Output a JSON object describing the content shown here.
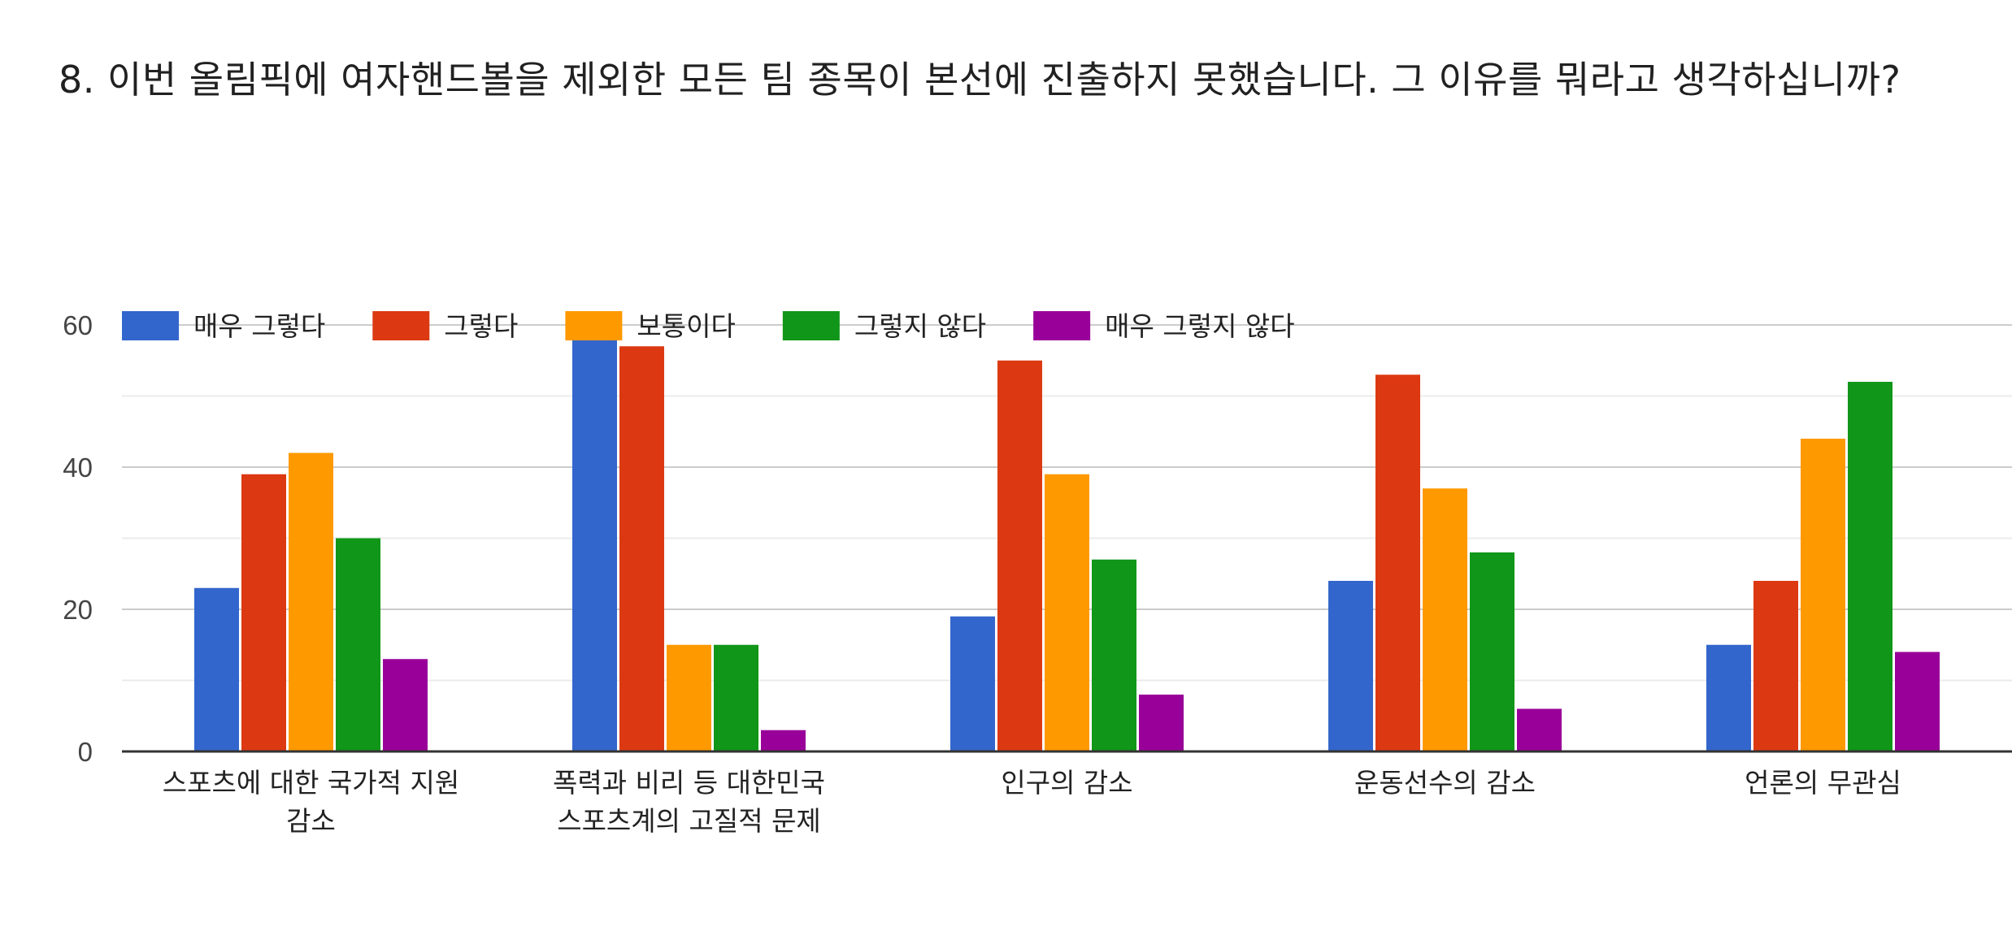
{
  "question": {
    "title": "8. 이번 올림픽에 여자핸드볼을 제외한 모든 팀 종목이 본선에 진출하지 못했습니다. 그 이유를 뭐라고 생각하십니까?"
  },
  "chart_data": {
    "type": "bar",
    "categories": [
      [
        "스포츠에 대한 국가적 지원",
        "감소"
      ],
      [
        "폭력과 비리 등 대한민국",
        "스포츠계의 고질적 문제"
      ],
      [
        "인구의 감소"
      ],
      [
        "운동선수의 감소"
      ],
      [
        "언론의 무관심"
      ]
    ],
    "series": [
      {
        "name": "매우 그렇다",
        "color": "#3366cc",
        "values": [
          23,
          58,
          19,
          24,
          15
        ]
      },
      {
        "name": "그렇다",
        "color": "#dc3912",
        "values": [
          39,
          57,
          55,
          53,
          24
        ]
      },
      {
        "name": "보통이다",
        "color": "#ff9900",
        "values": [
          42,
          15,
          39,
          37,
          44
        ]
      },
      {
        "name": "그렇지 않다",
        "color": "#109618",
        "values": [
          30,
          15,
          27,
          28,
          52
        ]
      },
      {
        "name": "매우 그렇지 않다",
        "color": "#990099",
        "values": [
          13,
          3,
          8,
          6,
          14
        ]
      }
    ],
    "yticks": [
      0,
      20,
      40,
      60
    ],
    "ylim": [
      0,
      60
    ],
    "grid": true,
    "legend_position": "top-left"
  }
}
